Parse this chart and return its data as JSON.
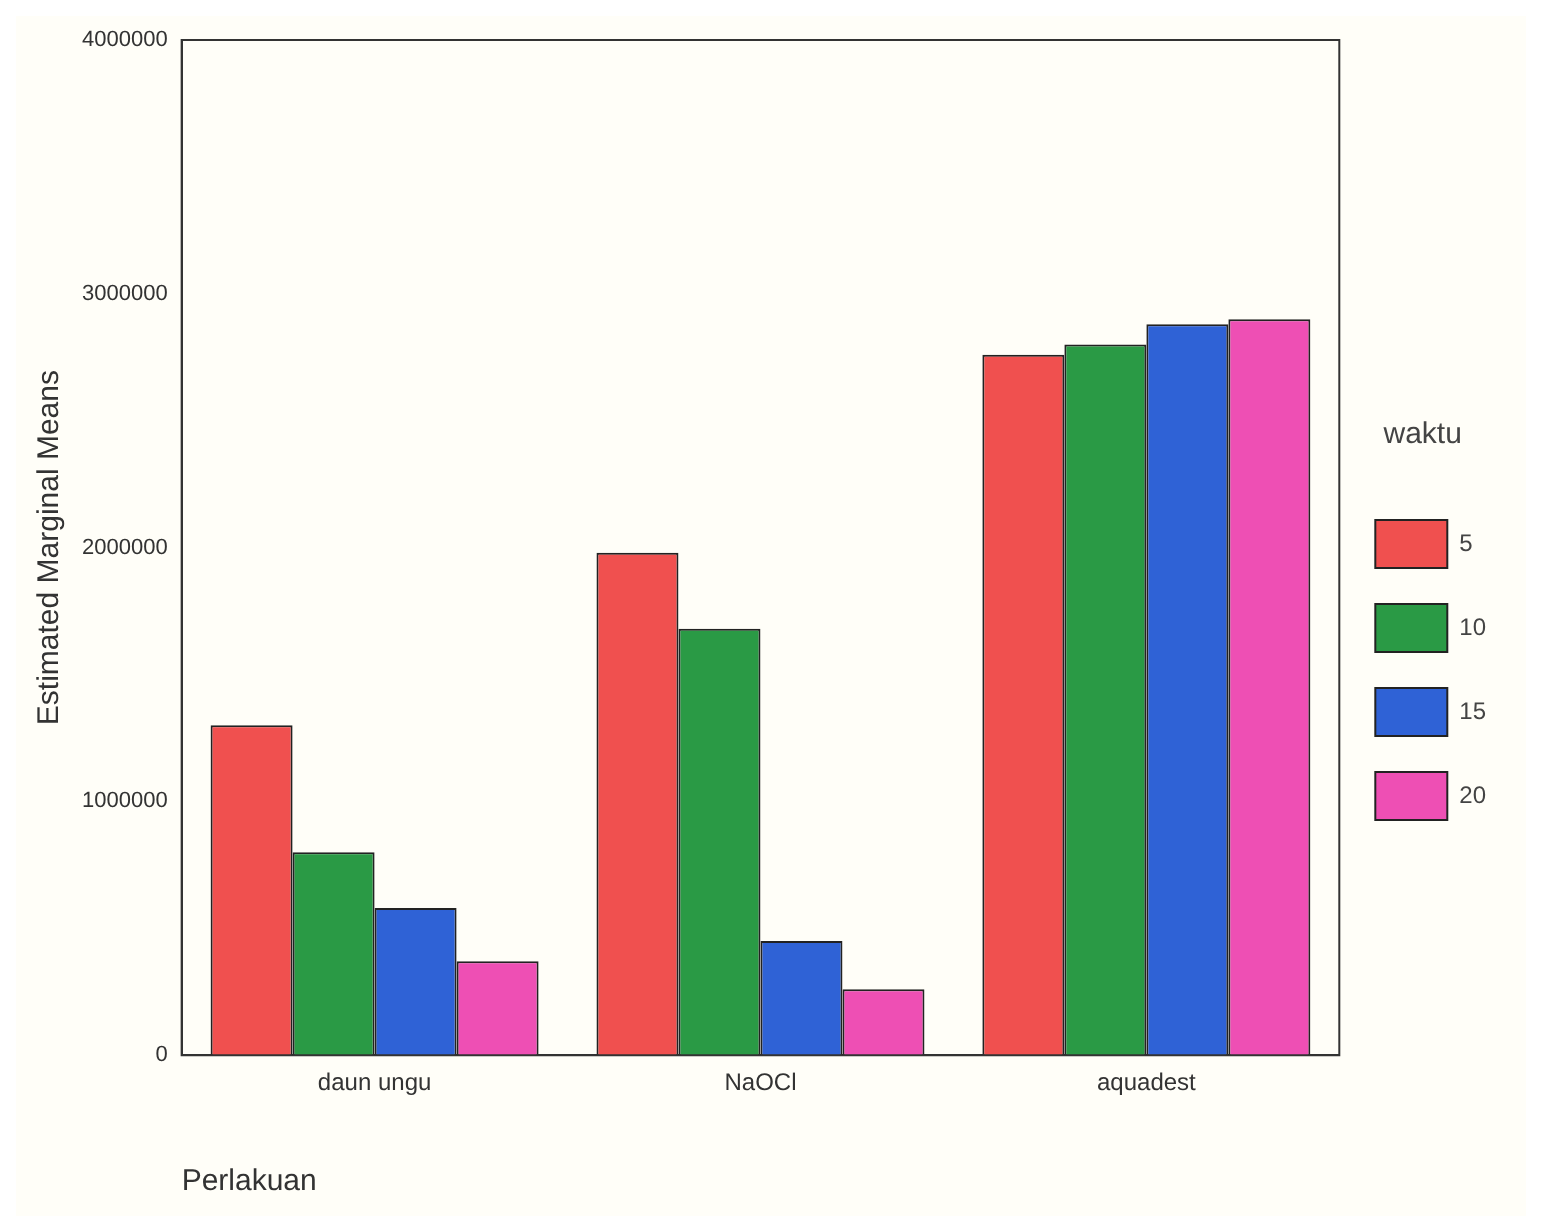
{
  "chart_data": {
    "type": "bar",
    "categories": [
      "daun ungu",
      "NaOCl",
      "aquadest"
    ],
    "xlabel": "Perlakuan",
    "ylabel": "Estimated Marginal Means",
    "legend_title": "waktu",
    "legend": "right",
    "grid": false,
    "ylim": [
      0,
      4000000
    ],
    "yticks": [
      0,
      1000000,
      2000000,
      3000000,
      4000000
    ],
    "series": [
      {
        "name": "5",
        "color": "#f0504f",
        "values": [
          1300000,
          1980000,
          2760000
        ]
      },
      {
        "name": "10",
        "color": "#2a9a45",
        "values": [
          800000,
          1680000,
          2800000
        ]
      },
      {
        "name": "15",
        "color": "#2f62d6",
        "values": [
          580000,
          450000,
          2880000
        ]
      },
      {
        "name": "20",
        "color": "#ee4fb4",
        "values": [
          370000,
          260000,
          2900000
        ]
      }
    ]
  }
}
